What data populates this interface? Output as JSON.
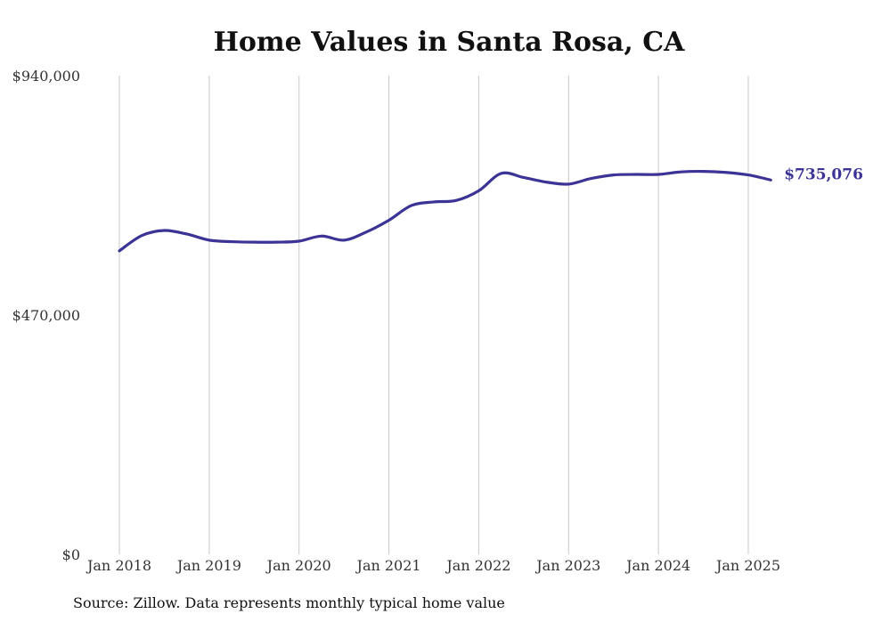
{
  "source_note": "Source: Zillow. Data represents monthly typical home value",
  "colors": {
    "line": "#3b3496",
    "grid": "#c8c8c8",
    "text": "#333333"
  },
  "chart_data": {
    "type": "line",
    "title": "Home Values in Santa Rosa, CA",
    "xlabel": "",
    "ylabel": "",
    "ylim": [
      0,
      940000
    ],
    "yticks": [
      0,
      470000,
      940000
    ],
    "ytick_labels": [
      "$0",
      "$470,000",
      "$940,000"
    ],
    "x_ticks": [
      "2018-01",
      "2019-01",
      "2020-01",
      "2021-01",
      "2022-01",
      "2023-01",
      "2024-01",
      "2025-01"
    ],
    "x_tick_labels": [
      "Jan 2018",
      "Jan 2019",
      "Jan 2020",
      "Jan 2021",
      "Jan 2022",
      "Jan 2023",
      "Jan 2024",
      "Jan 2025"
    ],
    "grid": "vertical",
    "legend": "none",
    "end_label": "$735,076",
    "series": [
      {
        "x": [
          "2018-01",
          "2018-04",
          "2018-07",
          "2018-10",
          "2019-01",
          "2019-04",
          "2019-07",
          "2019-10",
          "2020-01",
          "2020-04",
          "2020-07",
          "2020-10",
          "2021-01",
          "2021-04",
          "2021-07",
          "2021-10",
          "2022-01",
          "2022-04",
          "2022-07",
          "2022-10",
          "2023-01",
          "2023-04",
          "2023-07",
          "2023-10",
          "2024-01",
          "2024-04",
          "2024-07",
          "2024-10",
          "2025-01",
          "2025-04"
        ],
        "values": [
          596000,
          626000,
          636000,
          629000,
          617000,
          614000,
          613000,
          613000,
          615000,
          625000,
          617000,
          633000,
          656000,
          685000,
          692000,
          695000,
          714000,
          748000,
          740000,
          731000,
          727000,
          738000,
          745000,
          746000,
          746000,
          751000,
          752000,
          750000,
          745000,
          735076
        ]
      }
    ]
  }
}
